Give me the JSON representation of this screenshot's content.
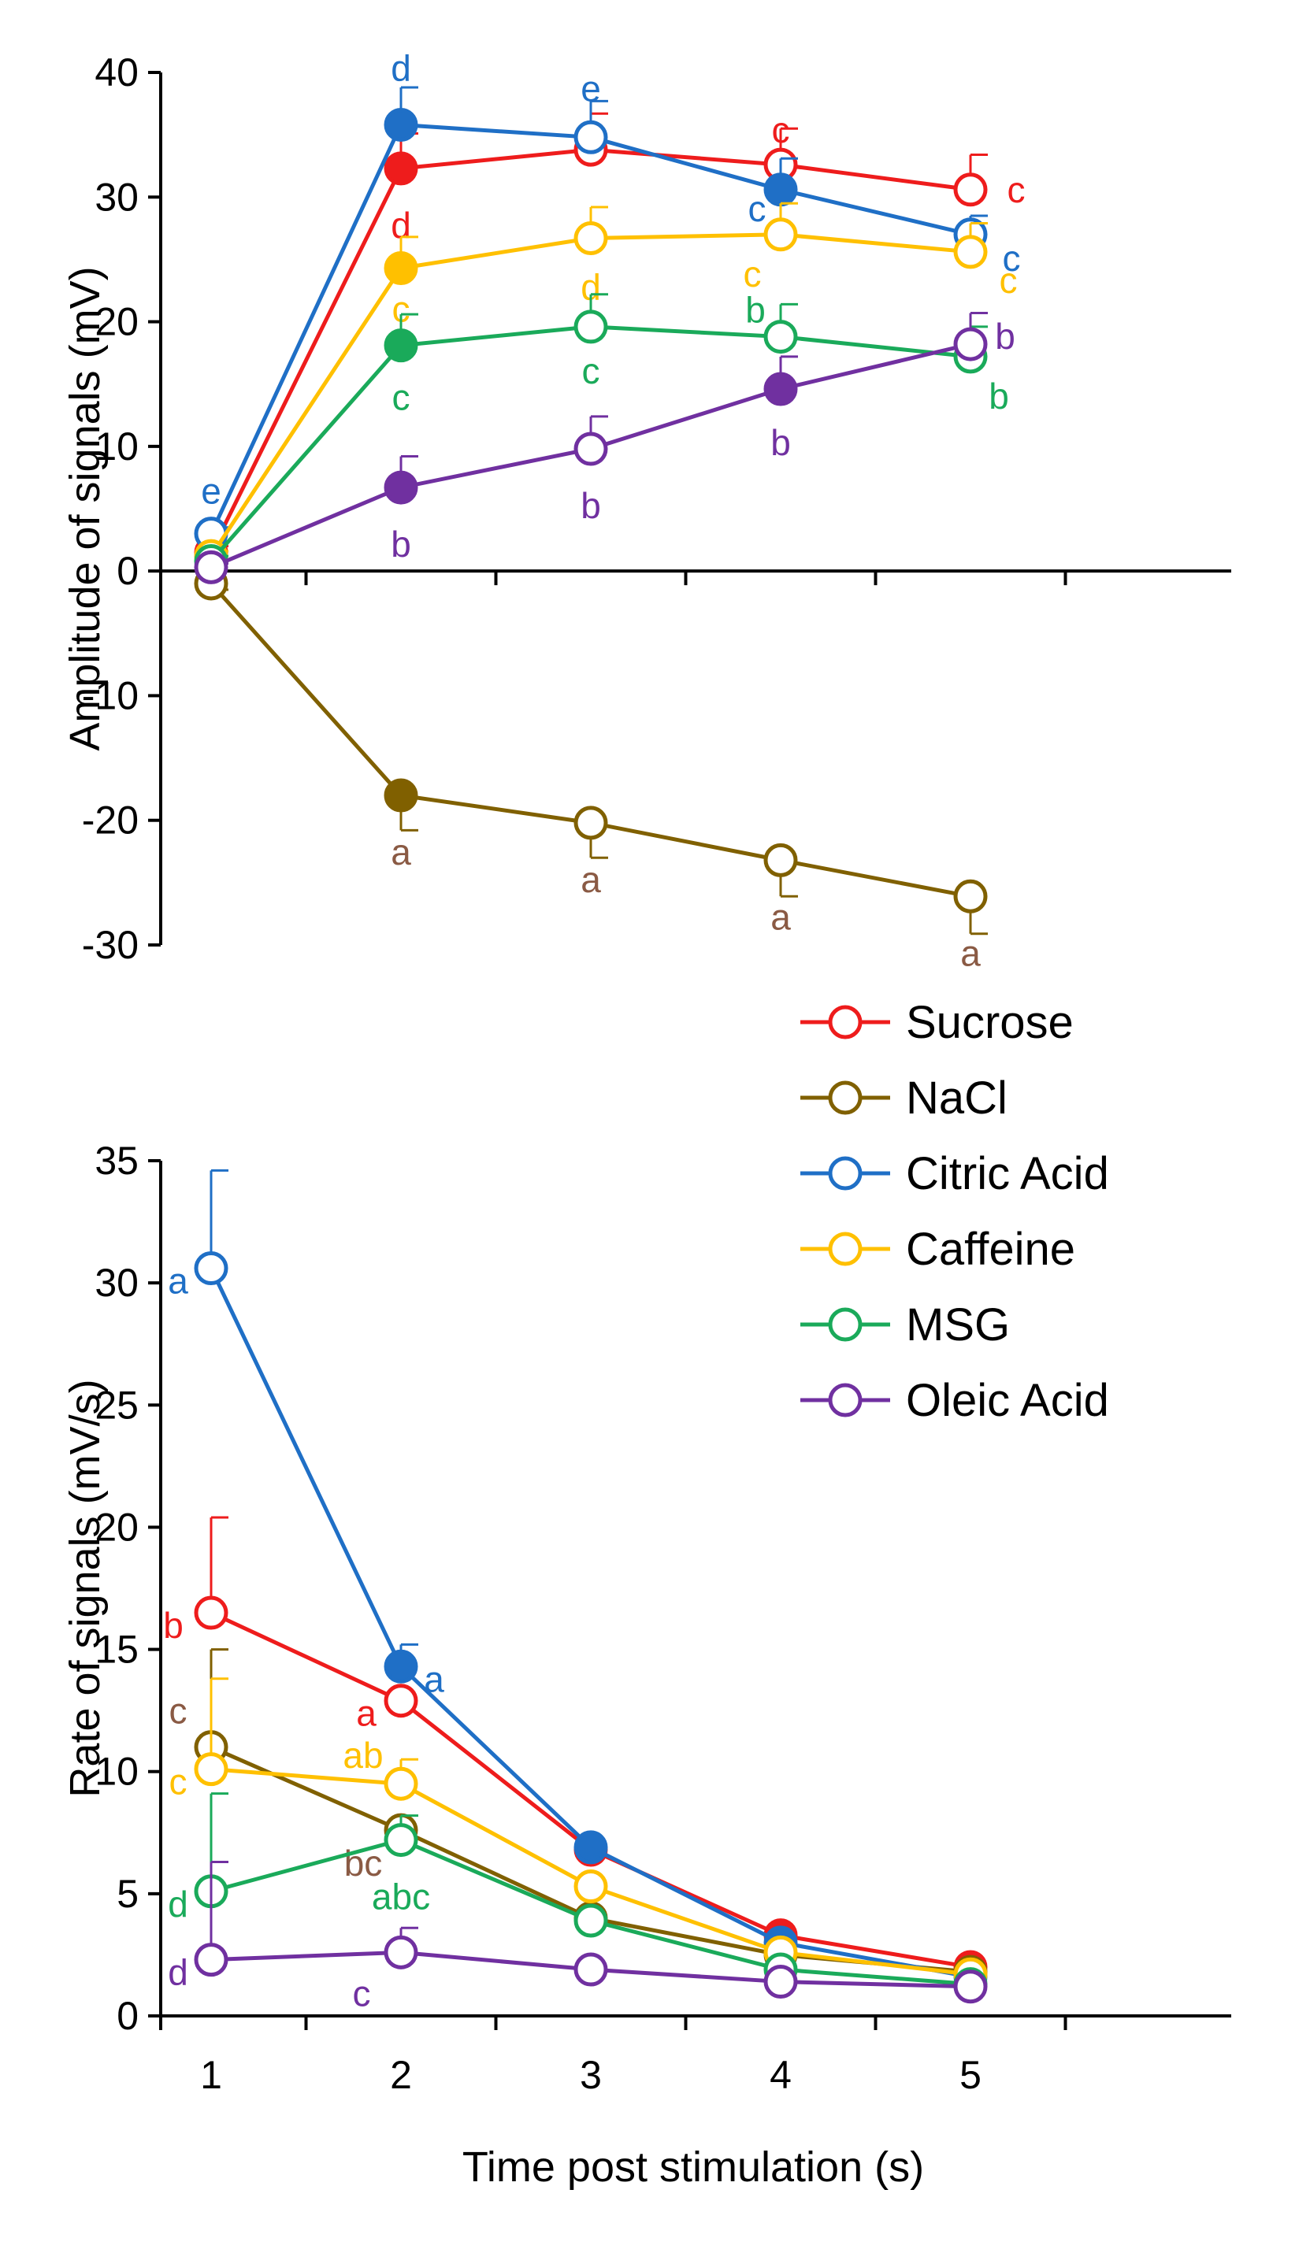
{
  "chart_data": [
    {
      "type": "line",
      "ylabel": "Amplitude of signals (mV)",
      "xlabel": "",
      "ylim": [
        -30,
        40
      ],
      "yticks": [
        40,
        30,
        20,
        10,
        0,
        -10,
        -20,
        -30
      ],
      "x": [
        1,
        2,
        3,
        4,
        5
      ],
      "grid": false,
      "series": [
        {
          "name": "Sucrose",
          "color": "#ee1c1c",
          "values": [
            1.5,
            32.3,
            33.8,
            32.6,
            30.6
          ],
          "errors": [
            0.5,
            2.8,
            2.9,
            2.9,
            2.8
          ],
          "filled": [
            false,
            true,
            false,
            false,
            false
          ],
          "labels": [
            "",
            "d",
            "e",
            "c",
            "c"
          ]
        },
        {
          "name": "NaCl",
          "color": "#806000",
          "values": [
            -1.0,
            -18.0,
            -20.2,
            -23.2,
            -26.1
          ],
          "errors": [
            0.5,
            2.8,
            2.8,
            2.9,
            3.0
          ],
          "filled": [
            false,
            true,
            false,
            false,
            false
          ],
          "labels": [
            "",
            "a",
            "a",
            "a",
            "a"
          ]
        },
        {
          "name": "Citric Acid",
          "color": "#1f6fc6",
          "values": [
            3.0,
            35.8,
            34.8,
            30.6,
            27.0
          ],
          "errors": [
            0.5,
            3.0,
            2.9,
            2.5,
            1.5
          ],
          "filled": [
            false,
            true,
            false,
            true,
            false
          ],
          "labels": [
            "e",
            "d",
            "e",
            "c",
            "c"
          ]
        },
        {
          "name": "Caffeine",
          "color": "#ffc000",
          "values": [
            1.2,
            24.3,
            26.7,
            27.0,
            25.6
          ],
          "errors": [
            0.4,
            2.5,
            2.5,
            2.5,
            2.3
          ],
          "filled": [
            false,
            true,
            false,
            false,
            false
          ],
          "labels": [
            "",
            "c",
            "d",
            "c",
            "c"
          ]
        },
        {
          "name": "MSG",
          "color": "#1aaa5a",
          "values": [
            0.8,
            18.1,
            19.6,
            18.8,
            17.2
          ],
          "errors": [
            0.4,
            2.5,
            2.6,
            2.6,
            2.4
          ],
          "filled": [
            false,
            true,
            false,
            false,
            false
          ],
          "labels": [
            "",
            "c",
            "c",
            "b",
            "b"
          ]
        },
        {
          "name": "Oleic Acid",
          "color": "#7030a0",
          "values": [
            0.3,
            6.7,
            9.8,
            14.6,
            18.2
          ],
          "errors": [
            0.3,
            2.5,
            2.6,
            2.6,
            2.5
          ],
          "filled": [
            false,
            true,
            false,
            true,
            false
          ],
          "labels": [
            "",
            "b",
            "b",
            "b",
            "b"
          ]
        }
      ]
    },
    {
      "type": "line",
      "ylabel": "Rate of signals (mV/s)",
      "xlabel": "Time post stimulation (s)",
      "ylim": [
        0,
        35
      ],
      "yticks": [
        35,
        30,
        25,
        20,
        15,
        10,
        5,
        0
      ],
      "xticks": [
        "1",
        "2",
        "3",
        "4",
        "5"
      ],
      "x": [
        1,
        2,
        3,
        4,
        5
      ],
      "grid": false,
      "legend": {
        "placement": "top-right",
        "entries": [
          "Sucrose",
          "NaCl",
          "Citric Acid",
          "Caffeine",
          "MSG",
          "Oleic Acid"
        ]
      },
      "series": [
        {
          "name": "Sucrose",
          "color": "#ee1c1c",
          "values": [
            16.5,
            12.9,
            6.8,
            3.3,
            2.0
          ],
          "errors": [
            3.9,
            0.0,
            0.0,
            0.0,
            0.0
          ],
          "filled": [
            false,
            false,
            true,
            true,
            true
          ],
          "labels": [
            "b",
            "a",
            "",
            "",
            ""
          ]
        },
        {
          "name": "NaCl",
          "color": "#806000",
          "values": [
            11.0,
            7.6,
            4.0,
            2.5,
            1.8
          ],
          "errors": [
            4.0,
            0.0,
            0.0,
            0.0,
            0.0
          ],
          "filled": [
            false,
            false,
            false,
            false,
            false
          ],
          "labels": [
            "c",
            "bc",
            "",
            "",
            ""
          ]
        },
        {
          "name": "Citric Acid",
          "color": "#1f6fc6",
          "values": [
            30.6,
            14.3,
            6.9,
            3.0,
            1.6
          ],
          "errors": [
            4.0,
            0.9,
            0.0,
            0.0,
            0.0
          ],
          "filled": [
            false,
            true,
            true,
            true,
            true
          ],
          "labels": [
            "a",
            "a",
            "",
            "",
            ""
          ]
        },
        {
          "name": "Caffeine",
          "color": "#ffc000",
          "values": [
            10.1,
            9.5,
            5.3,
            2.6,
            1.7
          ],
          "errors": [
            3.7,
            1.0,
            0.0,
            0.0,
            0.0
          ],
          "filled": [
            false,
            false,
            false,
            false,
            false
          ],
          "labels": [
            "c",
            "ab",
            "",
            "",
            ""
          ]
        },
        {
          "name": "MSG",
          "color": "#1aaa5a",
          "values": [
            5.1,
            7.2,
            3.9,
            1.9,
            1.3
          ],
          "errors": [
            4.0,
            1.0,
            0.0,
            0.0,
            0.0
          ],
          "filled": [
            false,
            false,
            false,
            false,
            false
          ],
          "labels": [
            "d",
            "abc",
            "",
            "",
            ""
          ]
        },
        {
          "name": "Oleic Acid",
          "color": "#7030a0",
          "values": [
            2.3,
            2.6,
            1.9,
            1.4,
            1.2
          ],
          "errors": [
            4.0,
            1.0,
            0.0,
            0.0,
            0.0
          ],
          "filled": [
            false,
            false,
            false,
            false,
            false
          ],
          "labels": [
            "d",
            "c",
            "",
            "",
            ""
          ]
        }
      ]
    }
  ]
}
